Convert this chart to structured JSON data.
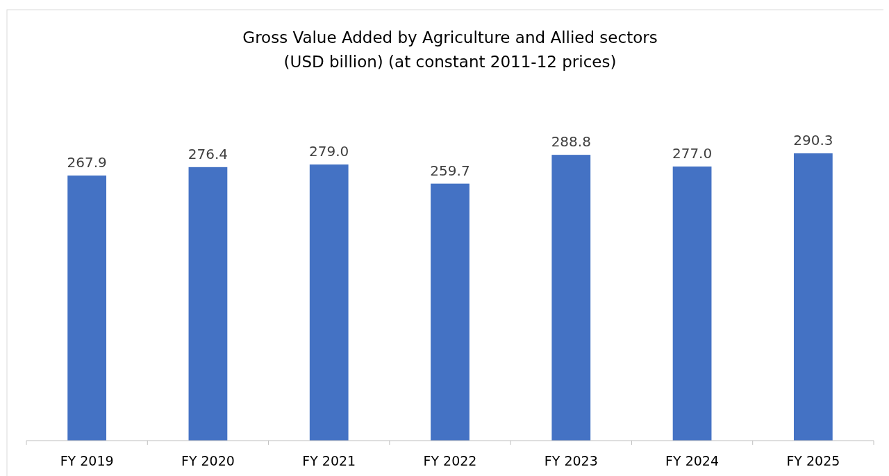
{
  "chart_data": {
    "type": "bar",
    "title": "Gross Value Added by Agriculture and Allied sectors\n(USD billion) (at constant 2011-12 prices)",
    "categories": [
      "FY 2019",
      "FY 2020",
      "FY 2021",
      "FY 2022",
      "FY 2023",
      "FY 2024",
      "FY 2025"
    ],
    "values": [
      267.9,
      276.4,
      279.0,
      259.7,
      288.8,
      277.0,
      290.3
    ],
    "color": "#4472c4",
    "value_labels": [
      "267.9",
      "276.4",
      "279.0",
      "259.7",
      "288.8",
      "277.0",
      "290.3"
    ],
    "tick_labels": "x"
  }
}
